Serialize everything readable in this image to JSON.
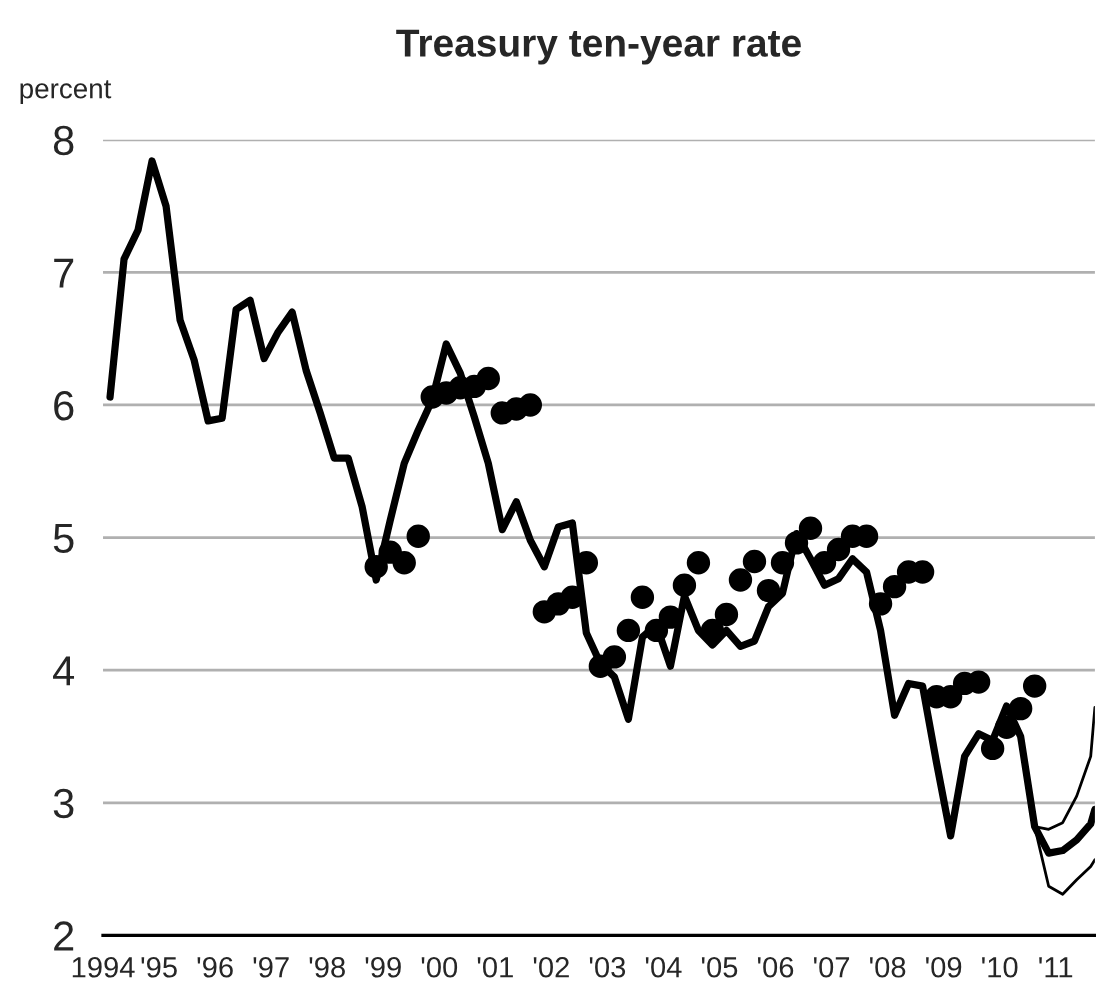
{
  "chart_data": {
    "type": "line",
    "title": "Treasury ten-year rate",
    "ylabel": "percent",
    "series": [
      {
        "color": "#000000",
        "x": [
          1994.125,
          1994.375,
          1994.625,
          1994.875,
          1995.125,
          1995.375,
          1995.625,
          1995.875,
          1996.125,
          1996.375,
          1996.625,
          1996.875,
          1997.125,
          1997.375,
          1997.625,
          1997.875,
          1998.125,
          1998.375,
          1998.625,
          1998.875,
          1999.125,
          1999.375,
          1999.625,
          1999.875,
          2000.125,
          2000.375,
          2000.625,
          2000.875,
          2001.125,
          2001.375,
          2001.625,
          2001.875,
          2002.125,
          2002.375,
          2002.625,
          2002.875,
          2003.125,
          2003.375,
          2003.625,
          2003.875,
          2004.125,
          2004.375,
          2004.625,
          2004.875,
          2005.125,
          2005.375,
          2005.625,
          2005.875,
          2006.125,
          2006.375,
          2006.625,
          2006.875,
          2007.125,
          2007.375,
          2007.625,
          2007.875,
          2008.125,
          2008.375,
          2008.625,
          2008.875,
          2009.125,
          2009.375,
          2009.625,
          2009.875,
          2010.125,
          2010.375,
          2010.625,
          2010.875,
          2011.125,
          2011.375,
          2011.625,
          2011.7
        ],
        "values": [
          6.06,
          7.1,
          7.32,
          7.84,
          7.5,
          6.64,
          6.34,
          5.88,
          5.9,
          6.72,
          6.79,
          6.35,
          6.55,
          6.7,
          6.26,
          5.94,
          5.6,
          5.6,
          5.23,
          4.68,
          5.13,
          5.56,
          5.81,
          6.04,
          6.46,
          6.24,
          5.91,
          5.56,
          5.06,
          5.27,
          4.98,
          4.78,
          5.08,
          5.11,
          4.28,
          4.05,
          3.95,
          3.63,
          4.25,
          4.34,
          4.03,
          4.56,
          4.3,
          4.19,
          4.3,
          4.18,
          4.22,
          4.48,
          4.58,
          5.03,
          4.84,
          4.64,
          4.69,
          4.84,
          4.74,
          4.3,
          3.66,
          3.9,
          3.88,
          3.3,
          2.75,
          3.35,
          3.52,
          3.47,
          3.73,
          3.5,
          2.82,
          2.62,
          2.64,
          2.72,
          2.84,
          2.95
        ]
      },
      {
        "type": "line",
        "color": "#000000",
        "x": [
          2010.625,
          2010.875,
          2011.125,
          2011.375,
          2011.625,
          2011.7
        ],
        "values": [
          2.82,
          2.8,
          2.85,
          3.05,
          3.35,
          3.72
        ]
      },
      {
        "type": "line",
        "color": "#000000",
        "x": [
          2010.625,
          2010.875,
          2011.125,
          2011.375,
          2011.625,
          2011.7
        ],
        "values": [
          2.82,
          2.37,
          2.31,
          2.42,
          2.52,
          2.57
        ]
      },
      {
        "type": "scatter",
        "color": "#000000",
        "marker": "circle",
        "x": [
          1998.875,
          1999.125,
          1999.375,
          1999.625,
          1999.875,
          2000.125,
          2000.375,
          2000.625,
          2000.875,
          2001.125,
          2001.375,
          2001.625,
          2001.875,
          2002.125,
          2002.375,
          2002.625,
          2002.875,
          2003.125,
          2003.375,
          2003.625,
          2003.875,
          2004.125,
          2004.375,
          2004.625,
          2004.875,
          2005.125,
          2005.375,
          2005.625,
          2005.875,
          2006.125,
          2006.375,
          2006.625,
          2006.875,
          2007.125,
          2007.375,
          2007.625,
          2007.875,
          2008.125,
          2008.375,
          2008.625,
          2008.875,
          2009.125,
          2009.375,
          2009.625,
          2009.875,
          2010.125,
          2010.375,
          2010.625
        ],
        "values": [
          4.78,
          4.89,
          4.81,
          5.01,
          6.06,
          6.09,
          6.13,
          6.14,
          6.2,
          5.94,
          5.97,
          6.0,
          4.44,
          4.5,
          4.55,
          4.81,
          4.03,
          4.1,
          4.3,
          4.55,
          4.3,
          4.4,
          4.64,
          4.81,
          4.3,
          4.42,
          4.68,
          4.82,
          4.6,
          4.81,
          4.96,
          5.07,
          4.81,
          4.91,
          5.01,
          5.01,
          4.5,
          4.63,
          4.74,
          4.74,
          3.8,
          3.8,
          3.9,
          3.91,
          3.41,
          3.57,
          3.71,
          3.88
        ]
      }
    ],
    "xlim": [
      1994,
      2011.7
    ],
    "xticks": [
      {
        "value": 1994,
        "label": "1994"
      },
      {
        "value": 1995,
        "label": "'95"
      },
      {
        "value": 1996,
        "label": "'96"
      },
      {
        "value": 1997,
        "label": "'97"
      },
      {
        "value": 1998,
        "label": "'98"
      },
      {
        "value": 1999,
        "label": "'99"
      },
      {
        "value": 2000,
        "label": "'00"
      },
      {
        "value": 2001,
        "label": "'01"
      },
      {
        "value": 2002,
        "label": "'02"
      },
      {
        "value": 2003,
        "label": "'03"
      },
      {
        "value": 2004,
        "label": "'04"
      },
      {
        "value": 2005,
        "label": "'05"
      },
      {
        "value": 2006,
        "label": "'06"
      },
      {
        "value": 2007,
        "label": "'07"
      },
      {
        "value": 2008,
        "label": "'08"
      },
      {
        "value": 2009,
        "label": "'09"
      },
      {
        "value": 2010,
        "label": "'10"
      },
      {
        "value": 2011,
        "label": "'11"
      }
    ],
    "ylim": [
      2,
      8
    ],
    "yticks": [
      2,
      3,
      4,
      5,
      6,
      7,
      8
    ],
    "grid": "y"
  }
}
